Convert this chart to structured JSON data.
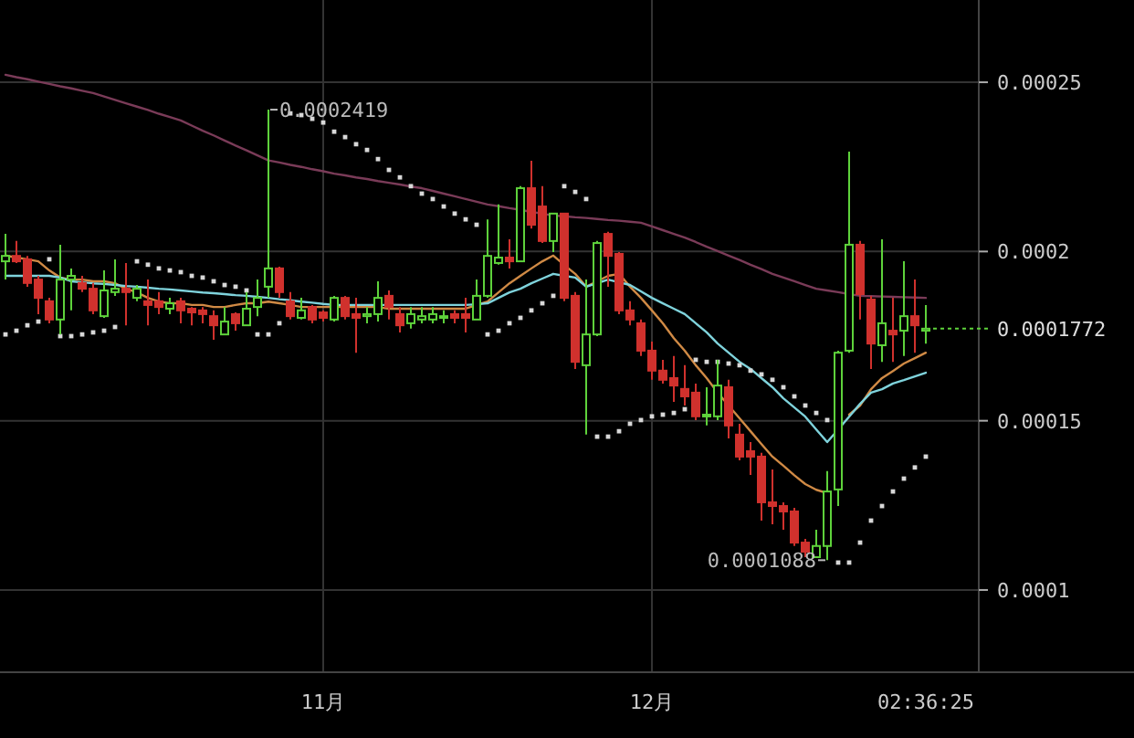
{
  "chart_data": {
    "type": "candlestick",
    "categories": [
      null,
      null,
      null,
      null,
      null,
      null,
      null,
      null,
      null,
      null,
      null,
      null,
      null,
      null,
      null,
      null,
      null,
      null,
      null,
      null,
      null,
      null,
      null,
      null,
      null,
      null,
      null,
      null,
      null,
      "11月",
      null,
      null,
      null,
      null,
      null,
      null,
      null,
      null,
      null,
      null,
      null,
      null,
      null,
      null,
      null,
      null,
      null,
      null,
      null,
      null,
      null,
      null,
      null,
      null,
      null,
      null,
      null,
      null,
      null,
      "12月",
      null,
      null,
      null,
      null,
      null,
      null,
      null,
      null,
      null,
      null,
      null,
      null,
      null,
      null,
      null,
      null,
      null,
      null,
      null,
      null,
      null,
      null,
      null,
      null,
      "02:36:25"
    ],
    "ohlc": [
      [
        0.0001971,
        0.0002052,
        0.0001917,
        0.0001987
      ],
      [
        0.0001987,
        0.0002031,
        0.0001966,
        0.0001971
      ],
      [
        0.0001977,
        0.0001987,
        0.0001896,
        0.0001907
      ],
      [
        0.0001917,
        0.0001928,
        0.0001815,
        0.0001863
      ],
      [
        0.0001853,
        0.0001863,
        0.0001788,
        0.0001799
      ],
      [
        0.0001799,
        0.000202,
        0.0001755,
        0.0001917
      ],
      [
        0.0001917,
        0.000195,
        0.0001826,
        0.0001928
      ],
      [
        0.0001907,
        0.0001928,
        0.000188,
        0.000189
      ],
      [
        0.000189,
        0.0001907,
        0.0001815,
        0.0001826
      ],
      [
        0.0001809,
        0.0001944,
        0.0001804,
        0.0001885
      ],
      [
        0.000188,
        0.0001977,
        0.0001869,
        0.000189
      ],
      [
        0.000189,
        0.0001966,
        0.0001782,
        0.000188
      ],
      [
        0.0001863,
        0.0001901,
        0.0001853,
        0.000189
      ],
      [
        0.0001853,
        0.0001917,
        0.0001782,
        0.0001842
      ],
      [
        0.0001853,
        0.000188,
        0.0001815,
        0.0001836
      ],
      [
        0.0001831,
        0.0001863,
        0.0001815,
        0.0001847
      ],
      [
        0.0001853,
        0.0001863,
        0.0001788,
        0.0001826
      ],
      [
        0.0001831,
        0.0001836,
        0.0001782,
        0.000182
      ],
      [
        0.0001826,
        0.0001836,
        0.0001788,
        0.0001815
      ],
      [
        0.0001809,
        0.0001826,
        0.0001739,
        0.0001782
      ],
      [
        0.0001755,
        0.0001836,
        0.0001755,
        0.0001793
      ],
      [
        0.0001815,
        0.000182,
        0.0001766,
        0.0001788
      ],
      [
        0.0001782,
        0.000188,
        0.0001782,
        0.0001831
      ],
      [
        0.0001836,
        0.0001917,
        0.0001809,
        0.0001863
      ],
      [
        0.0001896,
        0.0002419,
        0.0001863,
        0.000195
      ],
      [
        0.000195,
        0.0001955,
        0.0001863,
        0.000188
      ],
      [
        0.0001853,
        0.000188,
        0.0001799,
        0.0001809
      ],
      [
        0.0001804,
        0.0001863,
        0.0001799,
        0.0001826
      ],
      [
        0.0001836,
        0.0001842,
        0.0001788,
        0.0001799
      ],
      [
        0.000182,
        0.0001826,
        0.0001793,
        0.0001804
      ],
      [
        0.0001799,
        0.0001869,
        0.0001793,
        0.0001863
      ],
      [
        0.0001863,
        0.0001869,
        0.0001799,
        0.0001809
      ],
      [
        0.0001815,
        0.0001863,
        0.0001701,
        0.0001804
      ],
      [
        0.0001809,
        0.0001836,
        0.0001788,
        0.0001815
      ],
      [
        0.0001815,
        0.0001912,
        0.0001793,
        0.0001863
      ],
      [
        0.0001869,
        0.0001885,
        0.0001799,
        0.0001836
      ],
      [
        0.0001815,
        0.0001836,
        0.0001761,
        0.0001782
      ],
      [
        0.0001788,
        0.0001836,
        0.0001772,
        0.0001815
      ],
      [
        0.0001799,
        0.0001836,
        0.0001788,
        0.0001809
      ],
      [
        0.0001799,
        0.0001836,
        0.0001788,
        0.0001815
      ],
      [
        0.0001804,
        0.0001826,
        0.0001788,
        0.0001809
      ],
      [
        0.0001815,
        0.0001826,
        0.0001788,
        0.0001804
      ],
      [
        0.0001815,
        0.0001863,
        0.0001761,
        0.0001804
      ],
      [
        0.0001799,
        0.0001917,
        0.0001799,
        0.0001869
      ],
      [
        0.0001869,
        0.0002095,
        0.0001863,
        0.0001987
      ],
      [
        0.0001966,
        0.0002139,
        0.0001961,
        0.0001982
      ],
      [
        0.0001982,
        0.0002036,
        0.000195,
        0.0001971
      ],
      [
        0.0001971,
        0.0002193,
        0.0001971,
        0.0002187
      ],
      [
        0.0002187,
        0.0002268,
        0.0002068,
        0.0002079
      ],
      [
        0.0002133,
        0.0002193,
        0.0002025,
        0.0002031
      ],
      [
        0.0002031,
        0.0002112,
        0.0001998,
        0.0002112
      ],
      [
        0.0002112,
        0.0002112,
        0.0001853,
        0.0001863
      ],
      [
        0.0001869,
        0.000188,
        0.0001653,
        0.0001674
      ],
      [
        0.0001664,
        0.0001917,
        0.0001459,
        0.0001755
      ],
      [
        0.0001755,
        0.0002031,
        0.000175,
        0.0002025
      ],
      [
        0.0002052,
        0.0002058,
        0.0001896,
        0.0001987
      ],
      [
        0.0001993,
        0.0001998,
        0.0001815,
        0.0001826
      ],
      [
        0.0001826,
        0.0001853,
        0.0001782,
        0.0001799
      ],
      [
        0.0001788,
        0.0001799,
        0.0001691,
        0.0001707
      ],
      [
        0.0001707,
        0.0001734,
        0.0001621,
        0.0001648
      ],
      [
        0.0001648,
        0.000168,
        0.000161,
        0.0001621
      ],
      [
        0.0001626,
        0.0001691,
        0.0001556,
        0.0001604
      ],
      [
        0.0001594,
        0.0001664,
        0.0001545,
        0.0001572
      ],
      [
        0.0001583,
        0.000161,
        0.0001502,
        0.0001513
      ],
      [
        0.0001513,
        0.0001599,
        0.0001486,
        0.0001518
      ],
      [
        0.0001513,
        0.000168,
        0.0001502,
        0.0001604
      ],
      [
        0.0001599,
        0.0001621,
        0.0001448,
        0.0001486
      ],
      [
        0.0001459,
        0.0001491,
        0.0001383,
        0.0001394
      ],
      [
        0.000141,
        0.0001437,
        0.000134,
        0.0001394
      ],
      [
        0.0001394,
        0.0001405,
        0.0001205,
        0.0001259
      ],
      [
        0.0001259,
        0.0001356,
        0.0001194,
        0.0001248
      ],
      [
        0.0001248,
        0.0001259,
        0.0001178,
        0.0001232
      ],
      [
        0.0001232,
        0.0001243,
        0.000113,
        0.000114
      ],
      [
        0.000114,
        0.0001151,
        0.0001097,
        0.0001113
      ],
      [
        0.0001097,
        0.0001178,
        0.0001097,
        0.000113
      ],
      [
        0.000113,
        0.0001351,
        0.0001088,
        0.0001291
      ],
      [
        0.0001297,
        0.0001707,
        0.0001248,
        0.0001701
      ],
      [
        0.0001707,
        0.0002295,
        0.0001701,
        0.000202
      ],
      [
        0.000202,
        0.0002031,
        0.0001799,
        0.0001874
      ],
      [
        0.0001858,
        0.0001869,
        0.0001653,
        0.0001728
      ],
      [
        0.0001723,
        0.0002036,
        0.0001674,
        0.0001788
      ],
      [
        0.0001766,
        0.0001863,
        0.0001674,
        0.0001755
      ],
      [
        0.0001766,
        0.0001971,
        0.0001691,
        0.0001809
      ],
      [
        0.0001809,
        0.0001917,
        0.0001701,
        0.0001782
      ],
      [
        0.0001766,
        0.0001842,
        0.0001728,
        0.0001772
      ]
    ],
    "colors": [
      "#5ed23b",
      "#d0312d",
      "#d0312d",
      "#d0312d",
      "#d0312d",
      "#5ed23b",
      "#5ed23b",
      "#d0312d",
      "#d0312d",
      "#5ed23b",
      "#5ed23b",
      "#d0312d",
      "#5ed23b",
      "#d0312d",
      "#d0312d",
      "#5ed23b",
      "#d0312d",
      "#d0312d",
      "#d0312d",
      "#d0312d",
      "#5ed23b",
      "#d0312d",
      "#5ed23b",
      "#5ed23b",
      "#5ed23b",
      "#d0312d",
      "#d0312d",
      "#5ed23b",
      "#d0312d",
      "#d0312d",
      "#5ed23b",
      "#d0312d",
      "#d0312d",
      "#5ed23b",
      "#5ed23b",
      "#d0312d",
      "#d0312d",
      "#5ed23b",
      "#5ed23b",
      "#5ed23b",
      "#5ed23b",
      "#d0312d",
      "#d0312d",
      "#5ed23b",
      "#5ed23b",
      "#5ed23b",
      "#d0312d",
      "#5ed23b",
      "#d0312d",
      "#d0312d",
      "#5ed23b",
      "#d0312d",
      "#d0312d",
      "#5ed23b",
      "#5ed23b",
      "#d0312d",
      "#d0312d",
      "#d0312d",
      "#d0312d",
      "#d0312d",
      "#d0312d",
      "#d0312d",
      "#d0312d",
      "#d0312d",
      "#5ed23b",
      "#5ed23b",
      "#d0312d",
      "#d0312d",
      "#d0312d",
      "#d0312d",
      "#d0312d",
      "#d0312d",
      "#d0312d",
      "#d0312d",
      "#5ed23b",
      "#5ed23b",
      "#5ed23b",
      "#5ed23b",
      "#d0312d",
      "#d0312d",
      "#5ed23b",
      "#d0312d",
      "#5ed23b",
      "#d0312d",
      "#5ed23b"
    ],
    "series": [
      {
        "type": "line",
        "color": "#7a3b58",
        "values": [
          0.0002522,
          0.0002515,
          0.0002509,
          0.0002502,
          0.0002495,
          0.0002488,
          0.0002482,
          0.0002475,
          0.0002468,
          0.0002458,
          0.0002448,
          0.0002438,
          0.0002428,
          0.0002418,
          0.0002407,
          0.0002397,
          0.0002387,
          0.0002372,
          0.0002357,
          0.0002343,
          0.0002328,
          0.0002313,
          0.0002299,
          0.0002284,
          0.0002269,
          0.0002263,
          0.0002256,
          0.000225,
          0.0002243,
          0.0002237,
          0.000223,
          0.0002225,
          0.0002219,
          0.0002214,
          0.0002208,
          0.0002203,
          0.0002198,
          0.0002192,
          0.0002187,
          0.0002179,
          0.0002171,
          0.0002163,
          0.0002155,
          0.0002147,
          0.0002139,
          0.0002134,
          0.0002128,
          0.0002123,
          0.0002117,
          0.0002112,
          0.0002106,
          0.0002104,
          0.0002101,
          0.0002099,
          0.0002096,
          0.0002093,
          0.0002091,
          0.0002088,
          0.0002085,
          0.0002074,
          0.0002063,
          0.0002052,
          0.0002041,
          0.0002028,
          0.0002014,
          0.0002001,
          0.0001988,
          0.0001975,
          0.0001961,
          0.0001948,
          0.0001934,
          0.0001923,
          0.0001912,
          0.0001901,
          0.000189,
          0.0001885,
          0.000188,
          0.0001874,
          0.0001869,
          0.0001868,
          0.0001867,
          0.0001866,
          0.0001865,
          0.0001864,
          0.0001863
        ]
      },
      {
        "type": "line",
        "color": "#d08a45",
        "values": [
          0.0001988,
          0.0001982,
          0.0001977,
          0.0001971,
          0.0001944,
          0.0001923,
          0.0001917,
          0.0001917,
          0.0001912,
          0.0001912,
          0.0001906,
          0.000189,
          0.0001879,
          0.0001863,
          0.0001852,
          0.0001847,
          0.0001847,
          0.0001842,
          0.0001842,
          0.0001836,
          0.0001836,
          0.0001842,
          0.0001847,
          0.0001847,
          0.0001852,
          0.0001847,
          0.0001842,
          0.0001836,
          0.0001836,
          0.0001836,
          0.0001836,
          0.0001836,
          0.0001836,
          0.0001836,
          0.0001836,
          0.0001831,
          0.0001831,
          0.0001831,
          0.0001831,
          0.0001831,
          0.0001831,
          0.0001831,
          0.0001831,
          0.0001842,
          0.0001852,
          0.0001879,
          0.0001906,
          0.0001928,
          0.000195,
          0.0001971,
          0.0001988,
          0.000196,
          0.0001934,
          0.0001896,
          0.0001912,
          0.0001928,
          0.0001934,
          0.0001896,
          0.0001863,
          0.0001826,
          0.0001788,
          0.0001744,
          0.0001707,
          0.0001664,
          0.0001626,
          0.0001583,
          0.0001545,
          0.0001507,
          0.0001469,
          0.0001431,
          0.0001394,
          0.0001367,
          0.0001339,
          0.0001313,
          0.0001296,
          0.0001286,
          null,
          0.0001518,
          0.0001545,
          0.0001593,
          0.0001626,
          0.0001647,
          0.0001669,
          0.0001685,
          0.0001701
        ]
      },
      {
        "type": "line",
        "color": "#7fd3dc",
        "values": [
          0.0001928,
          0.0001928,
          0.0001928,
          0.0001928,
          0.0001928,
          0.0001923,
          0.0001912,
          0.0001909,
          0.0001906,
          0.0001904,
          0.0001901,
          0.0001898,
          0.0001896,
          0.0001893,
          0.000189,
          0.0001888,
          0.0001885,
          0.0001882,
          0.0001879,
          0.0001877,
          0.0001874,
          0.0001871,
          0.0001869,
          0.0001866,
          0.0001863,
          0.0001859,
          0.0001856,
          0.0001852,
          0.0001849,
          0.0001845,
          0.0001842,
          0.0001842,
          0.0001842,
          0.0001842,
          0.0001842,
          0.0001842,
          0.0001842,
          0.0001842,
          0.0001842,
          0.0001842,
          0.0001842,
          0.0001842,
          0.0001842,
          0.0001844,
          0.0001847,
          0.0001863,
          0.0001879,
          0.000189,
          0.0001906,
          0.000192,
          0.0001934,
          0.0001928,
          0.0001923,
          0.0001896,
          0.0001906,
          0.0001917,
          0.0001909,
          0.0001901,
          0.0001882,
          0.0001863,
          0.0001847,
          0.0001831,
          0.0001815,
          0.0001788,
          0.0001761,
          0.0001728,
          0.0001701,
          0.0001674,
          0.0001653,
          0.0001626,
          0.0001599,
          0.0001566,
          0.0001539,
          0.0001512,
          0.0001474,
          0.0001437,
          0.0001474,
          0.0001512,
          0.000155,
          0.0001583,
          0.0001593,
          0.000161,
          0.000162,
          0.0001631,
          0.0001642
        ]
      },
      {
        "type": "scatter",
        "color": "#d8d8d8",
        "marker": "square",
        "values": [
          0.0001755,
          0.0001766,
          0.0001782,
          0.0001793,
          0.0001977,
          0.000175,
          0.000175,
          0.0001755,
          0.0001761,
          0.0001766,
          0.0001777,
          null,
          0.0001971,
          0.0001961,
          0.000195,
          0.0001944,
          0.0001939,
          0.0001928,
          0.0001923,
          0.0001912,
          0.0001901,
          0.0001896,
          0.0001885,
          0.0001755,
          0.0001755,
          0.0001788,
          0.0002408,
          0.0002403,
          0.0002392,
          0.0002381,
          0.0002354,
          0.0002338,
          0.0002317,
          0.00023,
          0.0002273,
          0.0002241,
          0.0002219,
          0.0002193,
          0.0002171,
          0.0002155,
          0.0002133,
          0.0002112,
          0.0002095,
          0.0002079,
          0.0001755,
          0.0001766,
          0.0001788,
          0.0001804,
          0.0001826,
          0.0001847,
          0.0001869,
          0.0002193,
          0.0002176,
          0.0002155,
          0.0001453,
          0.0001453,
          0.0001469,
          0.0001491,
          0.0001502,
          0.0001513,
          0.0001518,
          0.0001523,
          0.0001534,
          0.000168,
          0.0001674,
          0.0001674,
          0.0001669,
          0.0001664,
          0.0001648,
          0.0001637,
          0.0001621,
          0.0001599,
          0.0001572,
          0.0001545,
          0.0001523,
          0.0001502,
          0.0001081,
          0.0001081,
          0.000114,
          0.0001205,
          0.0001248,
          0.0001291,
          0.0001329,
          0.0001362,
          0.0001394
        ]
      }
    ],
    "ylim": [
      7.57e-05,
      0.0002743
    ],
    "yticks": [
      0.0001,
      0.00015,
      0.0002,
      0.00025
    ],
    "grid": true,
    "ref_lines": [
      {
        "axis": "y",
        "value": 0.0001772,
        "label": "0.0001772",
        "color": "#5ed23b",
        "line_style": "dotted"
      }
    ],
    "annotations": [
      "0.0002419",
      "0.0001088"
    ]
  }
}
